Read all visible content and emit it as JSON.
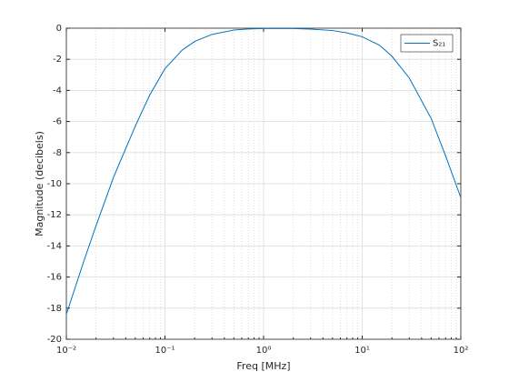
{
  "chart_data": {
    "type": "line",
    "xlabel": "Freq [MHz]",
    "ylabel": "Magnitude (decibels)",
    "x": [
      0.01,
      0.015,
      0.02,
      0.03,
      0.05,
      0.07,
      0.1,
      0.15,
      0.2,
      0.3,
      0.5,
      0.7,
      1,
      2,
      3,
      5,
      7,
      10,
      15,
      20,
      30,
      50,
      70,
      100
    ],
    "series": [
      {
        "name": "S₂₁",
        "color": "#0072bd",
        "values": [
          -18.4,
          -15.0,
          -12.7,
          -9.6,
          -6.3,
          -4.3,
          -2.6,
          -1.4,
          -0.85,
          -0.4,
          -0.12,
          -0.05,
          -0.02,
          -0.02,
          -0.06,
          -0.15,
          -0.3,
          -0.55,
          -1.1,
          -1.8,
          -3.2,
          -5.8,
          -8.2,
          -10.9
        ]
      }
    ],
    "xscale": "log",
    "xlim": [
      0.01,
      100
    ],
    "xticks": [
      {
        "value": 0.01,
        "label": "10⁻²"
      },
      {
        "value": 0.1,
        "label": "10⁻¹"
      },
      {
        "value": 1,
        "label": "10⁰"
      },
      {
        "value": 10,
        "label": "10¹"
      },
      {
        "value": 100,
        "label": "10²"
      }
    ],
    "xminorticks": [
      0.02,
      0.03,
      0.04,
      0.05,
      0.06,
      0.07,
      0.08,
      0.09,
      0.2,
      0.3,
      0.4,
      0.5,
      0.6,
      0.7,
      0.8,
      0.9,
      2,
      3,
      4,
      5,
      6,
      7,
      8,
      9,
      20,
      30,
      40,
      50,
      60,
      70,
      80,
      90
    ],
    "ylim": [
      -20,
      0
    ],
    "yticks": [
      -20,
      -18,
      -16,
      -14,
      -12,
      -10,
      -8,
      -6,
      -4,
      -2,
      0
    ],
    "grid": true,
    "minor_grid": true,
    "legend": "northeast"
  }
}
